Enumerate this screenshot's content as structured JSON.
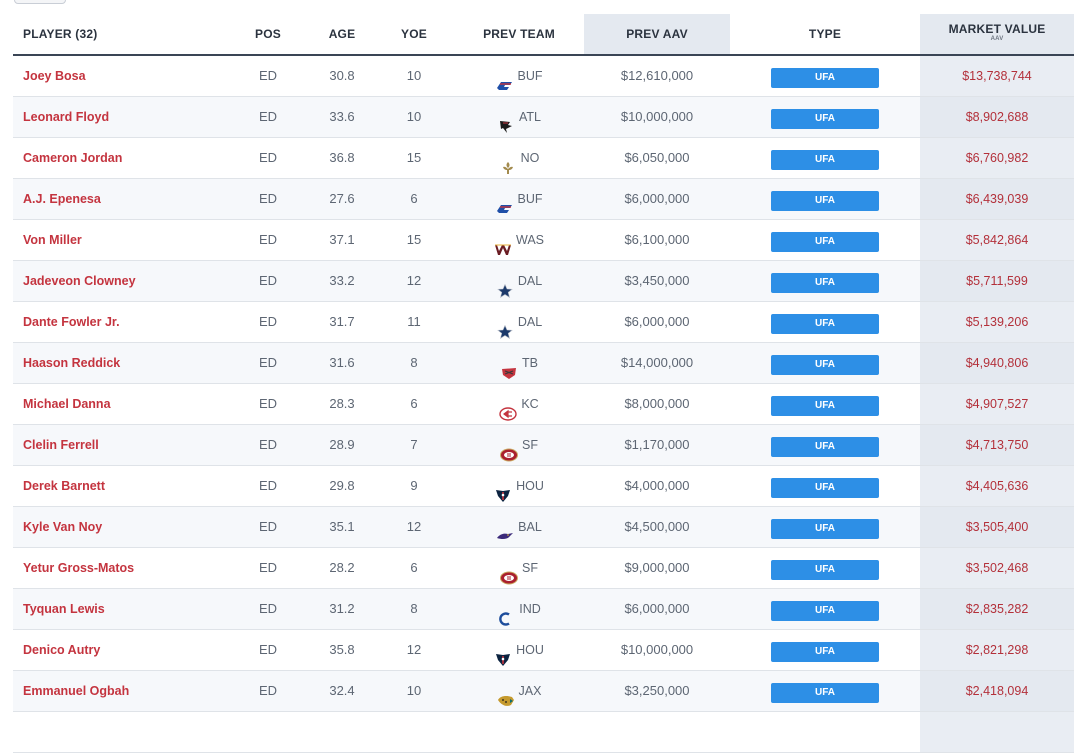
{
  "header": {
    "player": "PLAYER (32)",
    "pos": "POS",
    "age": "AGE",
    "yoe": "YOE",
    "prev_team": "PREV TEAM",
    "prev_aav": "PREV AAV",
    "type": "TYPE",
    "market_value": "MARKET VALUE",
    "market_value_sub": "AAV"
  },
  "colors": {
    "player_name": "#c4343f",
    "market_value": "#b3303a",
    "type_badge": "#2d8fe6",
    "highlight_column": "#e4e9f0"
  },
  "rows": [
    {
      "player": "Joey Bosa",
      "pos": "ED",
      "age": "30.8",
      "yoe": "10",
      "team": "BUF",
      "logo": "bills-logo-icon",
      "prev_aav": "$12,610,000",
      "type": "UFA",
      "market_value": "$13,738,744"
    },
    {
      "player": "Leonard Floyd",
      "pos": "ED",
      "age": "33.6",
      "yoe": "10",
      "team": "ATL",
      "logo": "falcons-logo-icon",
      "prev_aav": "$10,000,000",
      "type": "UFA",
      "market_value": "$8,902,688"
    },
    {
      "player": "Cameron Jordan",
      "pos": "ED",
      "age": "36.8",
      "yoe": "15",
      "team": "NO",
      "logo": "saints-logo-icon",
      "prev_aav": "$6,050,000",
      "type": "UFA",
      "market_value": "$6,760,982"
    },
    {
      "player": "A.J. Epenesa",
      "pos": "ED",
      "age": "27.6",
      "yoe": "6",
      "team": "BUF",
      "logo": "bills-logo-icon",
      "prev_aav": "$6,000,000",
      "type": "UFA",
      "market_value": "$6,439,039"
    },
    {
      "player": "Von Miller",
      "pos": "ED",
      "age": "37.1",
      "yoe": "15",
      "team": "WAS",
      "logo": "commanders-logo-icon",
      "prev_aav": "$6,100,000",
      "type": "UFA",
      "market_value": "$5,842,864"
    },
    {
      "player": "Jadeveon Clowney",
      "pos": "ED",
      "age": "33.2",
      "yoe": "12",
      "team": "DAL",
      "logo": "cowboys-logo-icon",
      "prev_aav": "$3,450,000",
      "type": "UFA",
      "market_value": "$5,711,599"
    },
    {
      "player": "Dante Fowler Jr.",
      "pos": "ED",
      "age": "31.7",
      "yoe": "11",
      "team": "DAL",
      "logo": "cowboys-logo-icon",
      "prev_aav": "$6,000,000",
      "type": "UFA",
      "market_value": "$5,139,206"
    },
    {
      "player": "Haason Reddick",
      "pos": "ED",
      "age": "31.6",
      "yoe": "8",
      "team": "TB",
      "logo": "buccaneers-logo-icon",
      "prev_aav": "$14,000,000",
      "type": "UFA",
      "market_value": "$4,940,806"
    },
    {
      "player": "Michael Danna",
      "pos": "ED",
      "age": "28.3",
      "yoe": "6",
      "team": "KC",
      "logo": "chiefs-logo-icon",
      "prev_aav": "$8,000,000",
      "type": "UFA",
      "market_value": "$4,907,527"
    },
    {
      "player": "Clelin Ferrell",
      "pos": "ED",
      "age": "28.9",
      "yoe": "7",
      "team": "SF",
      "logo": "49ers-logo-icon",
      "prev_aav": "$1,170,000",
      "type": "UFA",
      "market_value": "$4,713,750"
    },
    {
      "player": "Derek Barnett",
      "pos": "ED",
      "age": "29.8",
      "yoe": "9",
      "team": "HOU",
      "logo": "texans-logo-icon",
      "prev_aav": "$4,000,000",
      "type": "UFA",
      "market_value": "$4,405,636"
    },
    {
      "player": "Kyle Van Noy",
      "pos": "ED",
      "age": "35.1",
      "yoe": "12",
      "team": "BAL",
      "logo": "ravens-logo-icon",
      "prev_aav": "$4,500,000",
      "type": "UFA",
      "market_value": "$3,505,400"
    },
    {
      "player": "Yetur Gross-Matos",
      "pos": "ED",
      "age": "28.2",
      "yoe": "6",
      "team": "SF",
      "logo": "49ers-logo-icon",
      "prev_aav": "$9,000,000",
      "type": "UFA",
      "market_value": "$3,502,468"
    },
    {
      "player": "Tyquan Lewis",
      "pos": "ED",
      "age": "31.2",
      "yoe": "8",
      "team": "IND",
      "logo": "colts-logo-icon",
      "prev_aav": "$6,000,000",
      "type": "UFA",
      "market_value": "$2,835,282"
    },
    {
      "player": "Denico Autry",
      "pos": "ED",
      "age": "35.8",
      "yoe": "12",
      "team": "HOU",
      "logo": "texans-logo-icon",
      "prev_aav": "$10,000,000",
      "type": "UFA",
      "market_value": "$2,821,298"
    },
    {
      "player": "Emmanuel Ogbah",
      "pos": "ED",
      "age": "32.4",
      "yoe": "10",
      "team": "JAX",
      "logo": "jaguars-logo-icon",
      "prev_aav": "$3,250,000",
      "type": "UFA",
      "market_value": "$2,418,094"
    }
  ]
}
